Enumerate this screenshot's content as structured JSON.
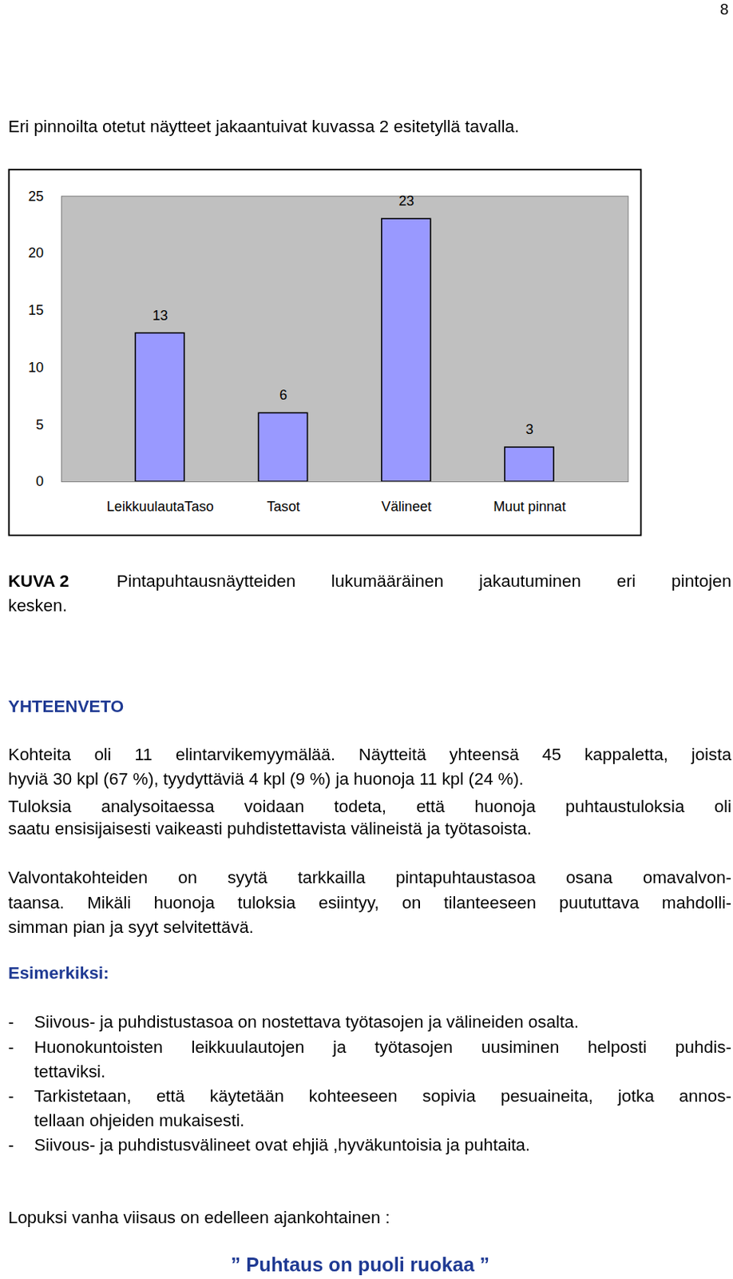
{
  "page_number": "8",
  "intro": "Eri pinnoilta otetut näytteet jakaantuivat kuvassa 2 esitetyllä tavalla.",
  "chart_data": {
    "type": "bar",
    "categories": [
      "LeikkuulautaTaso",
      "Tasot",
      "Välineet",
      "Muut pinnat"
    ],
    "values": [
      13,
      6,
      23,
      3
    ],
    "color": "#9999ff",
    "ylim": [
      0,
      25
    ],
    "yticks": [
      0,
      5,
      10,
      15,
      20,
      25
    ],
    "grid": false,
    "data_labels": true
  },
  "caption": {
    "label": "KUVA 2",
    "lines": [
      "Pintapuhtausnäytteiden lukumääräinen jakautuminen eri pintojen",
      "kesken."
    ]
  },
  "summary": {
    "heading": "YHTEENVETO",
    "paragraphs": [
      [
        "Kohteita oli 11 elintarvikemyymälää. Näytteitä yhteensä 45 kappaletta, joista",
        "hyviä 30 kpl (67 %), tyydyttäviä 4 kpl (9 %) ja huonoja 11 kpl (24 %)."
      ],
      [
        "Tuloksia analysoitaessa voidaan todeta, että huonoja puhtaustuloksia oli",
        "saatu ensisijaisesti vaikeasti puhdistettavista välineistä ja työtasoista."
      ],
      [
        "Valvontakohteiden on syytä tarkkailla pintapuhtaustasoa osana omavalvon-",
        "taansa. Mikäli huonoja tuloksia esiintyy, on tilanteeseen puututtava mahdolli-",
        "simman pian ja syyt selvitettävä."
      ]
    ]
  },
  "examples": {
    "heading": "Esimerkiksi:",
    "bullet": "-",
    "items": [
      [
        "Siivous- ja puhdistustasoa on nostettava työtasojen ja välineiden osalta."
      ],
      [
        "Huonokuntoisten leikkuulautojen ja työtasojen uusiminen helposti puhdis-",
        "tettaviksi."
      ],
      [
        "Tarkistetaan, että käytetään kohteeseen sopivia pesuaineita, jotka annos-",
        "tellaan ohjeiden mukaisesti."
      ],
      [
        "Siivous- ja puhdistusvälineet ovat ehjiä ,hyväkuntoisia ja puhtaita."
      ]
    ]
  },
  "closing": "Lopuksi vanha viisaus on edelleen ajankohtainen :",
  "motto": "” Puhtaus on puoli ruokaa ”"
}
